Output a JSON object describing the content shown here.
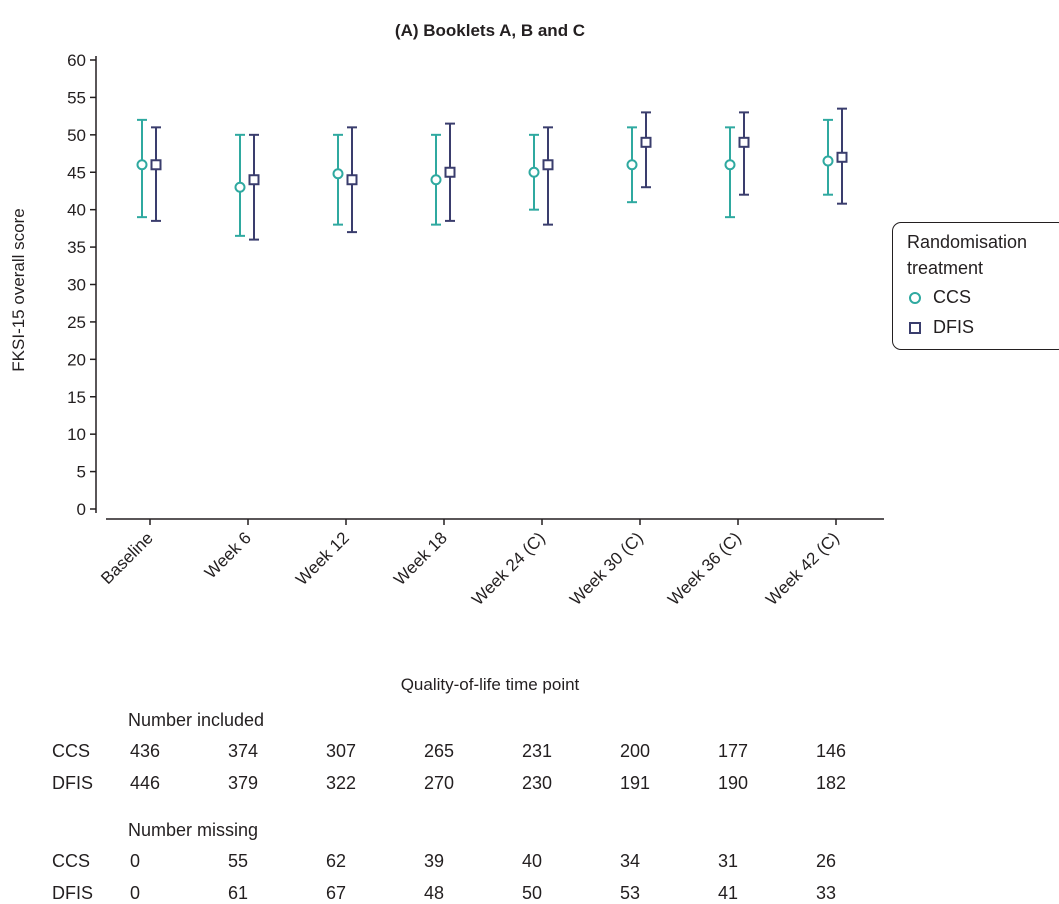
{
  "chart_data": {
    "type": "errorbar",
    "title": "(A) Booklets A, B and C",
    "xlabel": "Quality-of-life time point",
    "ylabel": "FKSI-15 overall score",
    "ylim": [
      0,
      60
    ],
    "yticks": [
      0,
      5,
      10,
      15,
      20,
      25,
      30,
      35,
      40,
      45,
      50,
      55,
      60
    ],
    "categories": [
      "Baseline",
      "Week 6",
      "Week 12",
      "Week 18",
      "Week 24 (C)",
      "Week 30 (C)",
      "Week 36 (C)",
      "Week 42 (C)"
    ],
    "series": [
      {
        "name": "CCS",
        "color": "#2fa9a0",
        "marker": "circle",
        "values": [
          46,
          43,
          44.8,
          44,
          45,
          46,
          46,
          46.5
        ],
        "lower": [
          39,
          36.5,
          38,
          38,
          40,
          41,
          39,
          42
        ],
        "upper": [
          52,
          50,
          50,
          50,
          50,
          51,
          51,
          52
        ]
      },
      {
        "name": "DFIS",
        "color": "#3a3d6d",
        "marker": "square",
        "values": [
          46,
          44,
          44,
          45,
          46,
          49,
          49,
          47
        ],
        "lower": [
          38.5,
          36,
          37,
          38.5,
          38,
          43,
          42,
          40.8
        ],
        "upper": [
          51,
          50,
          51,
          51.5,
          51,
          53,
          53,
          53.5
        ]
      }
    ],
    "legend": {
      "title": "Randomisation treatment",
      "title_line1": "Randomisation",
      "title_line2": "treatment",
      "position": "right"
    }
  },
  "table": {
    "included_header": "Number included",
    "missing_header": "Number missing",
    "included": [
      {
        "label": "CCS",
        "values": [
          "436",
          "374",
          "307",
          "265",
          "231",
          "200",
          "177",
          "146"
        ]
      },
      {
        "label": "DFIS",
        "values": [
          "446",
          "379",
          "322",
          "270",
          "230",
          "191",
          "190",
          "182"
        ]
      }
    ],
    "missing": [
      {
        "label": "CCS",
        "values": [
          "0",
          "55",
          "62",
          "39",
          "40",
          "34",
          "31",
          "26"
        ]
      },
      {
        "label": "DFIS",
        "values": [
          "0",
          "61",
          "67",
          "48",
          "50",
          "53",
          "41",
          "33"
        ]
      }
    ]
  }
}
